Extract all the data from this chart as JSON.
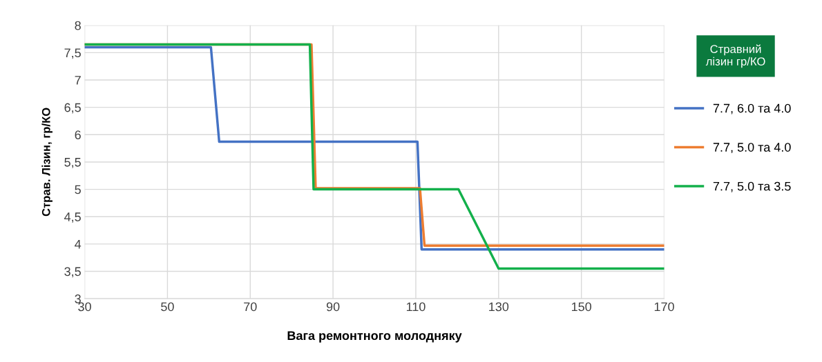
{
  "chart_data": {
    "type": "line",
    "xlabel": "Вага ремонтного молодняку",
    "ylabel": "Страв. Лізин, гр/КО",
    "legend_title": "Стравний\nлізин гр/КО",
    "legend": "right",
    "grid": true,
    "marker": "none",
    "line_style": "solid",
    "xlim": [
      30,
      170
    ],
    "xticks": [
      30,
      50,
      70,
      90,
      110,
      130,
      150,
      170
    ],
    "ylim": [
      3,
      8
    ],
    "yticks": [
      {
        "value": 3,
        "label": "3"
      },
      {
        "value": 3.5,
        "label": "3,5"
      },
      {
        "value": 4,
        "label": "4"
      },
      {
        "value": 4.5,
        "label": "4,5"
      },
      {
        "value": 5,
        "label": "5"
      },
      {
        "value": 5.5,
        "label": "5,5"
      },
      {
        "value": 6,
        "label": "6"
      },
      {
        "value": 6.5,
        "label": "6,5"
      },
      {
        "value": 7,
        "label": "7"
      },
      {
        "value": 7.5,
        "label": "7,5"
      },
      {
        "value": 8,
        "label": "8"
      }
    ],
    "series": [
      {
        "name": "7.7, 6.0 та 4.0",
        "color": "#4472c4",
        "x": [
          30,
          60.5,
          62.5,
          110.4,
          111.4,
          170
        ],
        "values": [
          7.6,
          7.6,
          5.87,
          5.87,
          3.9,
          3.9
        ]
      },
      {
        "name": "7.7, 5.0 та 4.0",
        "color": "#ed7d31",
        "x": [
          30,
          84.8,
          85.8,
          111,
          112.1,
          170
        ],
        "values": [
          7.65,
          7.65,
          5.02,
          5.02,
          3.97,
          3.97
        ]
      },
      {
        "name": "7.7, 5.0 та 3.5",
        "color": "#13b04b",
        "x": [
          30,
          84.4,
          85.3,
          120.3,
          130,
          170
        ],
        "values": [
          7.65,
          7.65,
          5.0,
          5.0,
          3.55,
          3.55
        ]
      }
    ]
  }
}
